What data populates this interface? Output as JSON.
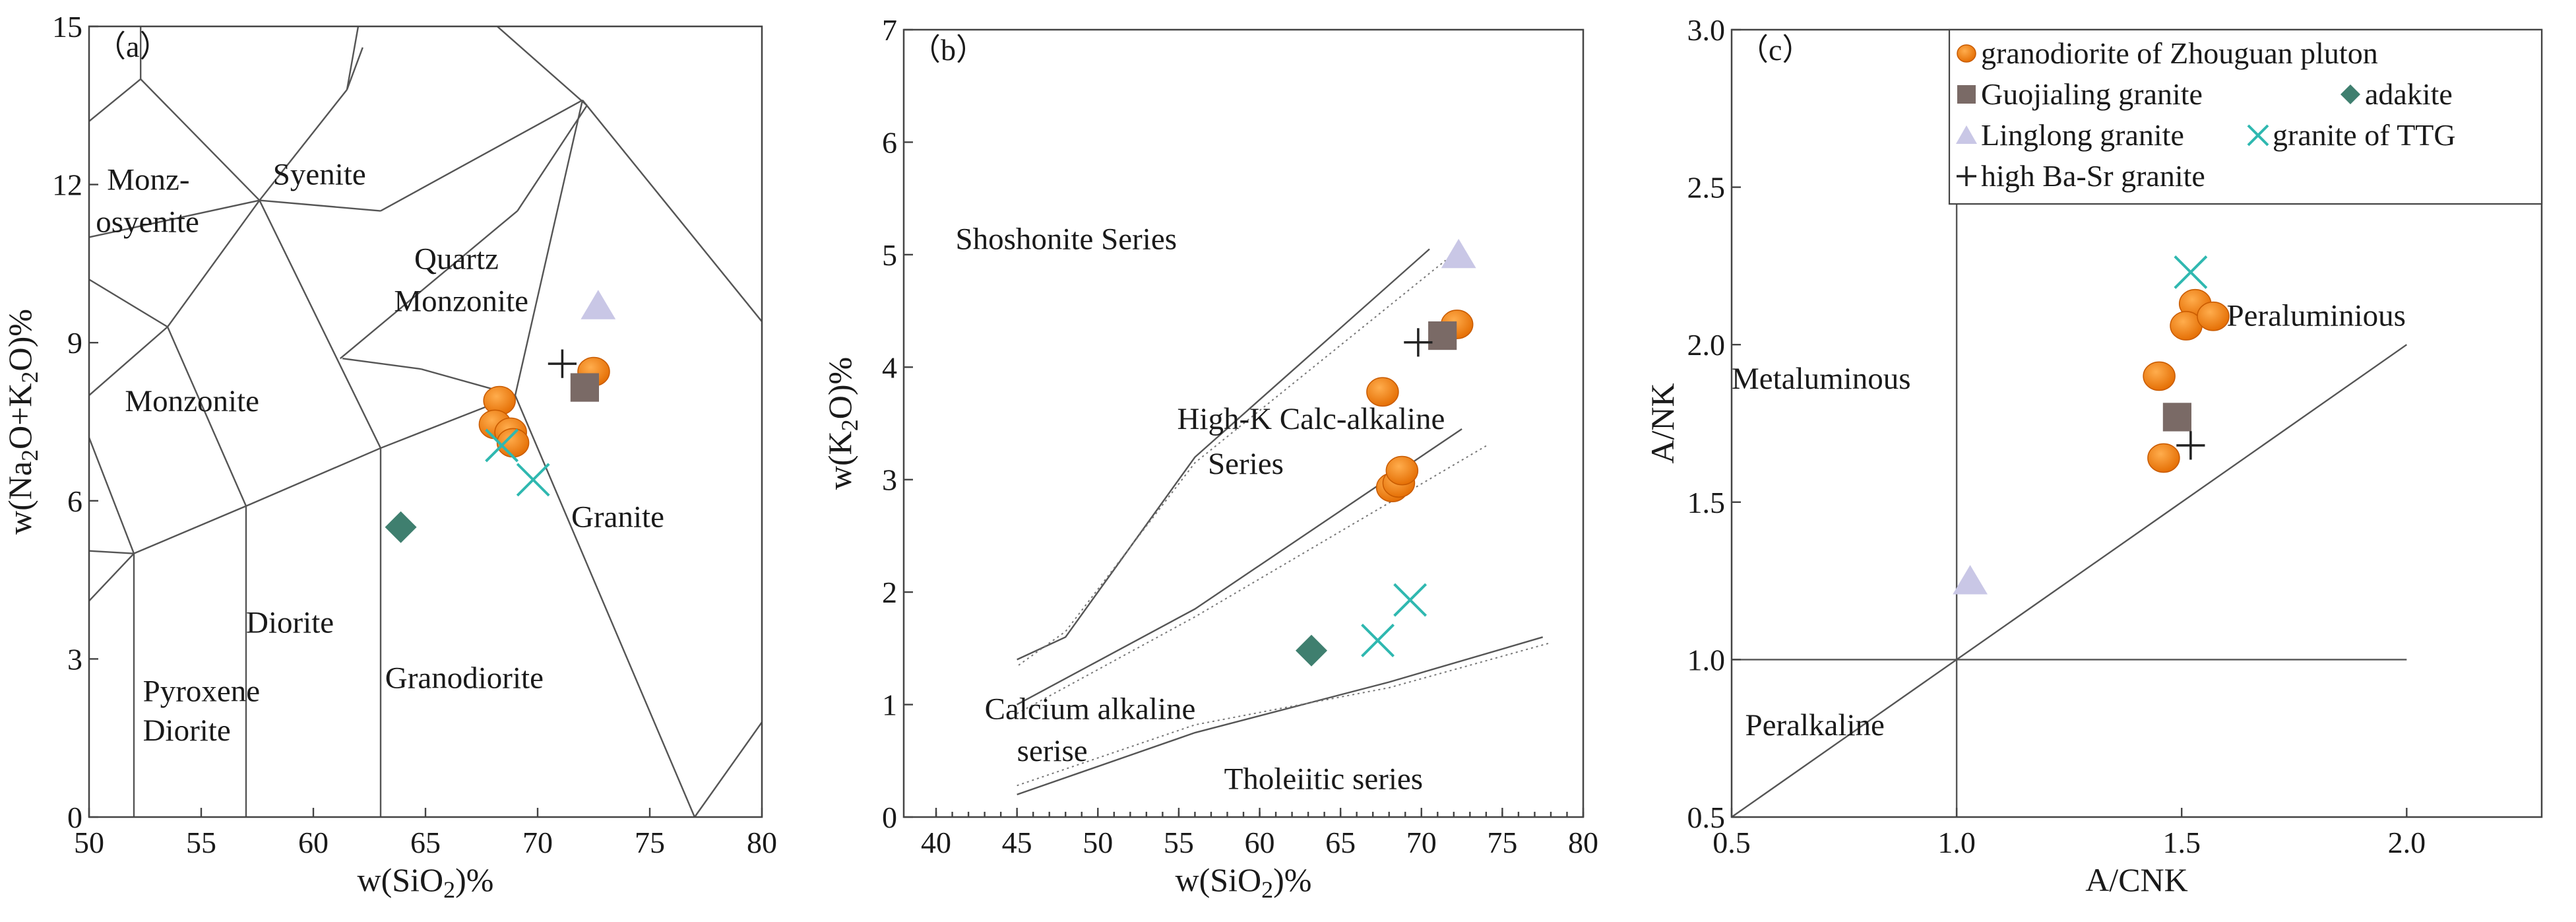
{
  "colors": {
    "granodiorite_zhouguan": "#f07d0c",
    "guojialing": "#7a6a66",
    "adakite": "#3f7f6f",
    "linglong": "#c9c7e6",
    "ttg": "#2fb8b0",
    "high_ba_sr": "#222222"
  },
  "legend": [
    {
      "key": "granodiorite_zhouguan",
      "marker": "circle",
      "label": "granodiorite of  Zhouguan  pluton"
    },
    {
      "key": "guojialing",
      "marker": "square",
      "label": "Guojialing granite"
    },
    {
      "key": "adakite",
      "marker": "diamond",
      "label": "adakite"
    },
    {
      "key": "linglong",
      "marker": "triangle",
      "label": "Linglong granite"
    },
    {
      "key": "ttg",
      "marker": "x",
      "label": "granite of TTG"
    },
    {
      "key": "high_ba_sr",
      "marker": "plus",
      "label": "high Ba-Sr granite"
    }
  ],
  "chart_data": [
    {
      "id": "a",
      "type": "scatter",
      "panel_label": "（a）",
      "xlabel": "w(SiO",
      "xlabel_sub": "2",
      "xlabel_tail": ")%",
      "ylabel": "w(Na",
      "ylabel_sub1": "2",
      "ylabel_mid": "O+K",
      "ylabel_sub2": "2",
      "ylabel_tail": "O)%",
      "xlim": [
        50,
        80
      ],
      "ylim": [
        0,
        15
      ],
      "xticks": [
        50,
        55,
        60,
        65,
        70,
        75,
        80
      ],
      "yticks": [
        0,
        3,
        6,
        9,
        12,
        15
      ],
      "regions": [
        {
          "x": 50.8,
          "y": 11.9,
          "lines": [
            "Monz-"
          ]
        },
        {
          "x": 50.3,
          "y": 11.1,
          "lines": [
            "osyenite"
          ]
        },
        {
          "x": 58.2,
          "y": 12.0,
          "lines": [
            "Syenite"
          ]
        },
        {
          "x": 64.5,
          "y": 10.4,
          "lines": [
            "Quartz"
          ]
        },
        {
          "x": 63.6,
          "y": 9.6,
          "lines": [
            "Monzonite"
          ]
        },
        {
          "x": 51.6,
          "y": 7.7,
          "lines": [
            "Monzonite"
          ]
        },
        {
          "x": 71.5,
          "y": 5.5,
          "lines": [
            "Granite"
          ]
        },
        {
          "x": 57.0,
          "y": 3.5,
          "lines": [
            "Diorite"
          ]
        },
        {
          "x": 52.4,
          "y": 2.2,
          "lines": [
            "Pyroxene"
          ]
        },
        {
          "x": 52.4,
          "y": 1.45,
          "lines": [
            "Diorite"
          ]
        },
        {
          "x": 63.2,
          "y": 2.45,
          "lines": [
            "Granodiorite"
          ]
        }
      ],
      "series": [
        {
          "key": "granodiorite_zhouguan",
          "points": [
            [
              68.3,
              7.9
            ],
            [
              68.1,
              7.45
            ],
            [
              68.8,
              7.3
            ],
            [
              68.9,
              7.1
            ],
            [
              72.5,
              8.45
            ]
          ]
        },
        {
          "key": "guojialing",
          "points": [
            [
              72.1,
              8.15
            ]
          ]
        },
        {
          "key": "linglong",
          "points": [
            [
              72.7,
              9.7
            ]
          ]
        },
        {
          "key": "ttg",
          "points": [
            [
              68.4,
              7.05
            ],
            [
              69.8,
              6.4
            ]
          ]
        },
        {
          "key": "adakite",
          "points": [
            [
              63.9,
              5.5
            ]
          ]
        },
        {
          "key": "high_ba_sr",
          "points": [
            [
              71.1,
              8.6
            ]
          ]
        }
      ]
    },
    {
      "id": "b",
      "type": "scatter",
      "panel_label": "（b）",
      "xlabel": "w(SiO",
      "xlabel_sub": "2",
      "xlabel_tail": ")%",
      "ylabel": "w(K",
      "ylabel_sub1": "2",
      "ylabel_tail": "O)%",
      "xlim": [
        38,
        80
      ],
      "ylim": [
        0,
        7
      ],
      "xticks": [
        40,
        45,
        50,
        55,
        60,
        65,
        70,
        75,
        80
      ],
      "yticks": [
        0,
        1,
        2,
        3,
        4,
        5,
        6,
        7
      ],
      "regions": [
        {
          "x": 41.2,
          "y": 5.05,
          "lines": [
            "Shoshonite Series"
          ]
        },
        {
          "x": 54.9,
          "y": 3.45,
          "lines": [
            "High-K Calc-alkaline"
          ]
        },
        {
          "x": 56.8,
          "y": 3.05,
          "lines": [
            "Series"
          ]
        },
        {
          "x": 43.0,
          "y": 0.87,
          "lines": [
            "Calcium alkaline"
          ]
        },
        {
          "x": 45.0,
          "y": 0.5,
          "lines": [
            "serise"
          ]
        },
        {
          "x": 57.8,
          "y": 0.25,
          "lines": [
            "Tholeiitic series"
          ]
        }
      ],
      "series": [
        {
          "key": "granodiorite_zhouguan",
          "points": [
            [
              67.6,
              3.78
            ],
            [
              72.2,
              4.38
            ],
            [
              68.2,
              2.93
            ],
            [
              68.6,
              2.97
            ],
            [
              68.8,
              3.08
            ]
          ]
        },
        {
          "key": "guojialing",
          "points": [
            [
              71.3,
              4.28
            ]
          ]
        },
        {
          "key": "linglong",
          "points": [
            [
              72.3,
              5.0
            ]
          ]
        },
        {
          "key": "ttg",
          "points": [
            [
              67.3,
              1.57
            ],
            [
              69.3,
              1.93
            ]
          ]
        },
        {
          "key": "adakite",
          "points": [
            [
              63.2,
              1.48
            ]
          ]
        },
        {
          "key": "high_ba_sr",
          "points": [
            [
              69.8,
              4.22
            ]
          ]
        }
      ]
    },
    {
      "id": "c",
      "type": "scatter",
      "panel_label": "（c）",
      "xlabel": "A/CNK",
      "ylabel": "A/NK",
      "xlim": [
        0.5,
        2.3
      ],
      "ylim": [
        0.5,
        3.0
      ],
      "xticks": [
        0.5,
        1.0,
        1.5,
        2.0
      ],
      "xtick_labels": [
        "0.5",
        "1.0",
        "1.5",
        "2.0"
      ],
      "yticks": [
        0.5,
        1.0,
        1.5,
        2.0,
        2.5,
        3.0
      ],
      "ytick_labels": [
        "0.5",
        "1.0",
        "1.5",
        "2.0",
        "2.5",
        "3.0"
      ],
      "regions": [
        {
          "x": 0.5,
          "y": 1.86,
          "lines": [
            "Metaluminous"
          ]
        },
        {
          "x": 1.6,
          "y": 2.06,
          "lines": [
            "Peraluminious"
          ]
        },
        {
          "x": 0.53,
          "y": 0.76,
          "lines": [
            "Peralkaline"
          ]
        }
      ],
      "series": [
        {
          "key": "granodiorite_zhouguan",
          "points": [
            [
              1.53,
              2.13
            ],
            [
              1.51,
              2.06
            ],
            [
              1.57,
              2.09
            ],
            [
              1.45,
              1.9
            ],
            [
              1.46,
              1.64
            ]
          ]
        },
        {
          "key": "guojialing",
          "points": [
            [
              1.49,
              1.77
            ]
          ]
        },
        {
          "key": "linglong",
          "points": [
            [
              1.03,
              1.25
            ]
          ]
        },
        {
          "key": "ttg",
          "points": [
            [
              1.52,
              2.23
            ]
          ]
        },
        {
          "key": "high_ba_sr",
          "points": [
            [
              1.52,
              1.68
            ]
          ]
        }
      ]
    }
  ]
}
